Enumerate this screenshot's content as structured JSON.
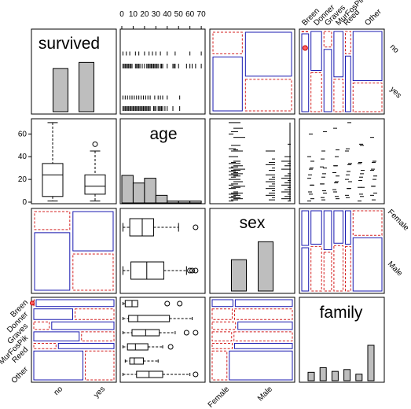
{
  "chart_data": {
    "type": "pairs-mosaic",
    "title": "",
    "variables": [
      "survived",
      "age",
      "sex",
      "family"
    ],
    "levels": {
      "survived": [
        "no",
        "yes"
      ],
      "sex": [
        "Female",
        "Male"
      ],
      "family": [
        "Breen",
        "Donner",
        "Graves",
        "MurFosPik",
        "Reed",
        "Other"
      ]
    },
    "age_axis": {
      "ticks": [
        0,
        10,
        20,
        30,
        40,
        50,
        60,
        70
      ],
      "range": [
        0,
        72
      ],
      "left_ticks": [
        0,
        20,
        40,
        60
      ]
    },
    "counts": {
      "survived": [
        42,
        48
      ],
      "sex": [
        35,
        55
      ],
      "family": [
        9,
        14,
        10,
        12,
        7,
        38
      ],
      "survived_by_sex": {
        "no": [
          10,
          32
        ],
        "yes": [
          25,
          23
        ]
      },
      "family_by_survived": {
        "Breen": [
          0,
          9
        ],
        "Donner": [
          7,
          7
        ],
        "Graves": [
          2,
          8
        ],
        "MurFosPik": [
          7,
          5
        ],
        "Reed": [
          2,
          5
        ],
        "Other": [
          24,
          14
        ]
      },
      "family_by_sex": {
        "Breen": [
          4,
          5
        ],
        "Donner": [
          6,
          8
        ],
        "Graves": [
          5,
          5
        ],
        "MurFosPik": [
          5,
          7
        ],
        "Reed": [
          3,
          4
        ],
        "Other": [
          12,
          26
        ]
      }
    },
    "age_histogram": {
      "bins": [
        0,
        10,
        20,
        30,
        40,
        50,
        60,
        70
      ],
      "counts": [
        29,
        21,
        26,
        8,
        2,
        2,
        2
      ]
    },
    "age_by_survived": {
      "no": {
        "min": 1,
        "q1": 5,
        "median": 24,
        "q3": 34,
        "max": 70,
        "outliers": []
      },
      "yes": {
        "min": 1,
        "q1": 7,
        "median": 14,
        "q3": 24,
        "max": 45,
        "outliers": [
          51
        ]
      }
    },
    "age_by_sex": {
      "Female": {
        "min": 1,
        "q1": 7,
        "median": 18,
        "q3": 28,
        "max": 50,
        "outliers": [
          65
        ]
      },
      "Male": {
        "min": 1,
        "q1": 8,
        "median": 22,
        "q3": 37,
        "max": 57,
        "outliers": [
          60,
          62,
          65
        ]
      }
    },
    "age_by_family": {
      "Breen": {
        "min": 1,
        "q1": 3,
        "median": 9,
        "q3": 14,
        "max": 14,
        "outliers": [
          40,
          51
        ]
      },
      "Donner": {
        "min": 1,
        "q1": 6,
        "median": 14,
        "q3": 42,
        "max": 62,
        "outliers": []
      },
      "Graves": {
        "min": 1,
        "q1": 9,
        "median": 21,
        "q3": 33,
        "max": 47,
        "outliers": [
          57,
          65
        ]
      },
      "MurFosPik": {
        "min": 1,
        "q1": 5,
        "median": 12,
        "q3": 23,
        "max": 36,
        "outliers": [
          43
        ]
      },
      "Reed": {
        "min": 3,
        "q1": 7,
        "median": 11,
        "q3": 19,
        "max": 32,
        "outliers": []
      },
      "Other": {
        "min": 1,
        "q1": 13,
        "median": 24,
        "q3": 36,
        "max": 60,
        "outliers": [
          65
        ]
      },
      "extra_row": {
        "min": 0,
        "q1": 20,
        "median": 24,
        "q3": 28,
        "max": 36,
        "outliers": [
          0,
          1,
          2,
          62,
          68
        ]
      }
    },
    "age_by_survived_strip": {
      "no": [
        1,
        2,
        3,
        4,
        5,
        6,
        7,
        8,
        9,
        12,
        13,
        14,
        15,
        16,
        18,
        20,
        22,
        23,
        24,
        25,
        26,
        27,
        28,
        29,
        30,
        31,
        32,
        34,
        35,
        36,
        40,
        45,
        46,
        47,
        50,
        57,
        60,
        62,
        65,
        70
      ],
      "yes": [
        1,
        2,
        3,
        4,
        5,
        6,
        7,
        8,
        9,
        10,
        11,
        12,
        13,
        14,
        15,
        16,
        17,
        18,
        19,
        20,
        21,
        22,
        23,
        24,
        25,
        28,
        29,
        30,
        32,
        33,
        34,
        35,
        36,
        38,
        40,
        45,
        51
      ]
    },
    "grid": "none",
    "legend": "none"
  }
}
